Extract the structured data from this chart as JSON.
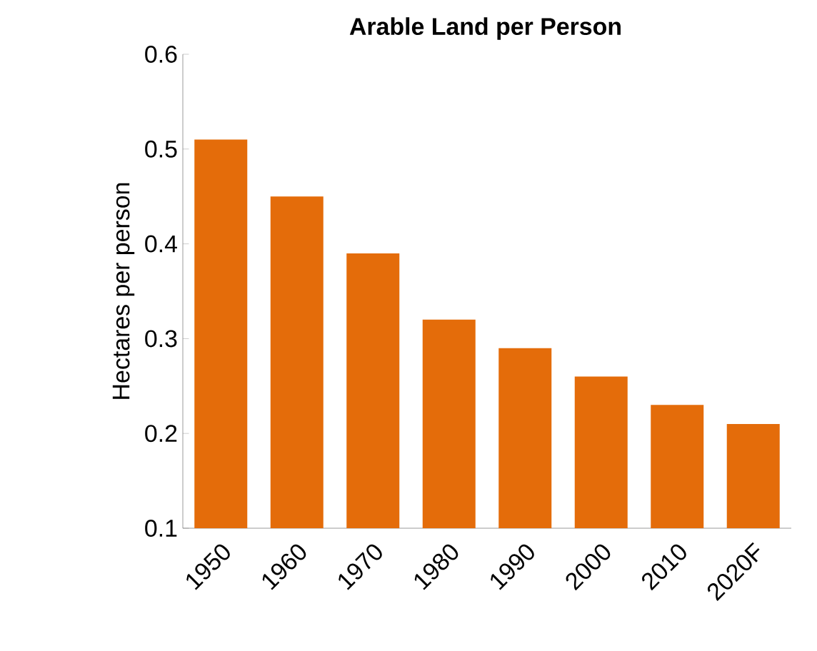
{
  "chart_data": {
    "type": "bar",
    "title": "Arable Land per Person",
    "ylabel": "Hectares per person",
    "categories": [
      "1950",
      "1960",
      "1970",
      "1980",
      "1990",
      "2000",
      "2010",
      "2020F"
    ],
    "values": [
      0.51,
      0.45,
      0.39,
      0.32,
      0.29,
      0.26,
      0.23,
      0.21
    ],
    "color": "#e46c0a",
    "ylim": [
      0.1,
      0.6
    ],
    "yticks": [
      0.1,
      0.2,
      0.3,
      0.4,
      0.5,
      0.6
    ],
    "grid": false
  }
}
